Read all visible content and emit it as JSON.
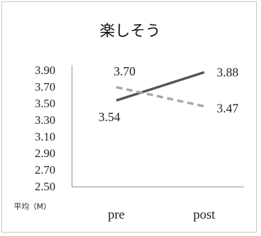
{
  "chart_data": {
    "type": "line",
    "title": "楽しそう",
    "ylabel": "平均（M）",
    "xlabel": "",
    "categories": [
      "pre",
      "post"
    ],
    "ylim": [
      2.5,
      3.9
    ],
    "yticks": [
      "3.90",
      "3.70",
      "3.50",
      "3.30",
      "3.10",
      "2.90",
      "2.70",
      "2.50"
    ],
    "grid": false,
    "legend": "none",
    "series": [
      {
        "values": [
          3.54,
          3.88
        ],
        "labels": [
          "3.54",
          "3.88"
        ],
        "style": "solid",
        "color": "#555555"
      },
      {
        "values": [
          3.7,
          3.47
        ],
        "labels": [
          "3.70",
          "3.47"
        ],
        "style": "dashed",
        "color": "#a6a6a6"
      }
    ]
  }
}
